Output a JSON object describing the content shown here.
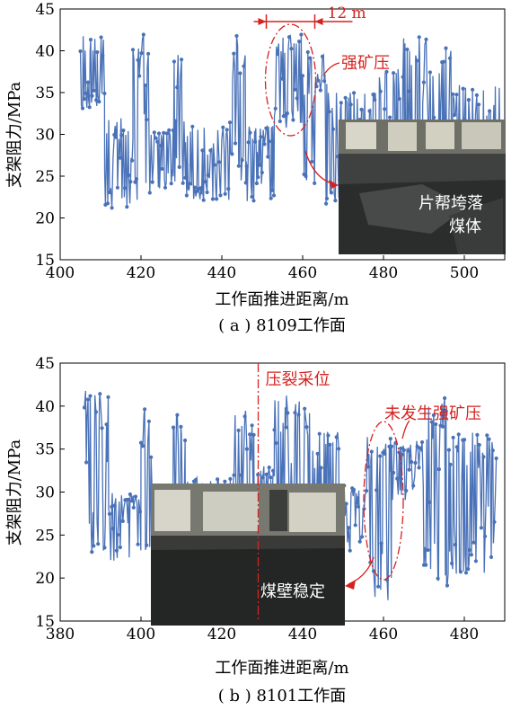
{
  "chart_data": [
    {
      "type": "line",
      "panel_label": "( a ) 8109工作面",
      "xlabel": "工作面推进距离/m",
      "ylabel": "支架阻力/MPa",
      "xlim": [
        400,
        510
      ],
      "ylim": [
        15,
        45
      ],
      "xticks": [
        400,
        420,
        440,
        460,
        480,
        500
      ],
      "yticks": [
        15,
        20,
        25,
        30,
        35,
        40,
        45
      ],
      "series_color": "#4a72b8",
      "x_range": [
        405,
        509
      ],
      "annotations": {
        "span_label": "12 m",
        "span": [
          451,
          463
        ],
        "ellipse_label": "强矿压",
        "ellipse_center": [
          457,
          36.5
        ],
        "inset_text_line1": "片帮垮落",
        "inset_text_line2": "煤体"
      },
      "segments": [
        {
          "x": [
            405,
            411
          ],
          "low": 33,
          "high": 42
        },
        {
          "x": [
            411,
            418
          ],
          "low": 21,
          "high": 32
        },
        {
          "x": [
            418,
            422
          ],
          "low": 19,
          "high": 42
        },
        {
          "x": [
            422,
            428
          ],
          "low": 23,
          "high": 31
        },
        {
          "x": [
            428,
            431
          ],
          "low": 24,
          "high": 40
        },
        {
          "x": [
            431,
            442
          ],
          "low": 22,
          "high": 31
        },
        {
          "x": [
            442,
            446
          ],
          "low": 24,
          "high": 42
        },
        {
          "x": [
            446,
            453
          ],
          "low": 22,
          "high": 31
        },
        {
          "x": [
            453,
            460
          ],
          "low": 30,
          "high": 42
        },
        {
          "x": [
            460,
            466
          ],
          "low": 21,
          "high": 40
        },
        {
          "x": [
            466,
            478
          ],
          "low": 22,
          "high": 35
        },
        {
          "x": [
            478,
            485
          ],
          "low": 22,
          "high": 38
        },
        {
          "x": [
            485,
            497
          ],
          "low": 22,
          "high": 42
        },
        {
          "x": [
            497,
            509
          ],
          "low": 21,
          "high": 36
        }
      ]
    },
    {
      "type": "line",
      "panel_label": "( b ) 8101工作面",
      "xlabel": "工作面推进距离/m",
      "ylabel": "支架阻力/MPa",
      "xlim": [
        380,
        490
      ],
      "ylim": [
        15,
        45
      ],
      "xticks": [
        380,
        400,
        420,
        440,
        460,
        480
      ],
      "yticks": [
        15,
        20,
        25,
        30,
        35,
        40,
        45
      ],
      "series_color": "#4a72b8",
      "x_range": [
        386,
        488
      ],
      "annotations": {
        "vline_label": "压裂采位",
        "vline_x": 429,
        "ellipse_label": "未发生强矿压",
        "ellipse_center": [
          460,
          29
        ],
        "inset_text": "煤壁稳定"
      },
      "segments": [
        {
          "x": [
            386,
            392
          ],
          "low": 23,
          "high": 42
        },
        {
          "x": [
            392,
            400
          ],
          "low": 22,
          "high": 30
        },
        {
          "x": [
            400,
            403
          ],
          "low": 20,
          "high": 40
        },
        {
          "x": [
            403,
            408
          ],
          "low": 23,
          "high": 30
        },
        {
          "x": [
            408,
            411
          ],
          "low": 24,
          "high": 39
        },
        {
          "x": [
            411,
            423
          ],
          "low": 22,
          "high": 32
        },
        {
          "x": [
            423,
            428
          ],
          "low": 26,
          "high": 40
        },
        {
          "x": [
            428,
            433
          ],
          "low": 27,
          "high": 33
        },
        {
          "x": [
            433,
            442
          ],
          "low": 24,
          "high": 42
        },
        {
          "x": [
            442,
            449
          ],
          "low": 23,
          "high": 38
        },
        {
          "x": [
            449,
            456
          ],
          "low": 23,
          "high": 31
        },
        {
          "x": [
            456,
            462
          ],
          "low": 17,
          "high": 37
        },
        {
          "x": [
            462,
            470
          ],
          "low": 29,
          "high": 36
        },
        {
          "x": [
            470,
            476
          ],
          "low": 19,
          "high": 41
        },
        {
          "x": [
            476,
            488
          ],
          "low": 20,
          "high": 37
        }
      ]
    }
  ]
}
